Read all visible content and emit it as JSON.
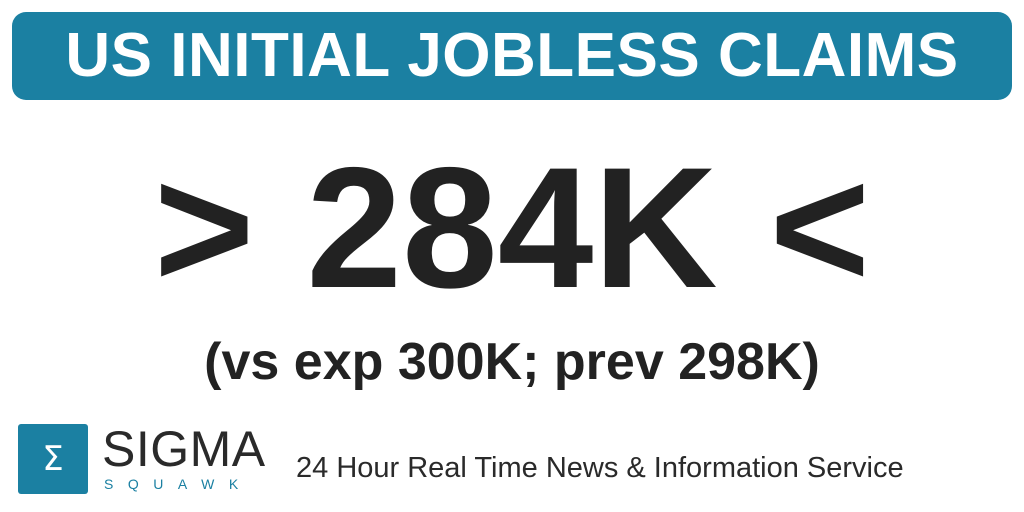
{
  "headline": {
    "title": "US INITIAL JOBLESS CLAIMS"
  },
  "figure": {
    "left_marker": ">",
    "value": "284K",
    "right_marker": "<"
  },
  "comparison": {
    "text": "(vs exp 300K; prev 298K)"
  },
  "brand": {
    "name": "SIGMA",
    "sub": "SQUAWK",
    "logo_glyph": "Σ",
    "tagline": "24 Hour Real Time News & Information Service"
  },
  "colors": {
    "accent": "#1b80a2",
    "text": "#222222",
    "background": "#ffffff"
  }
}
